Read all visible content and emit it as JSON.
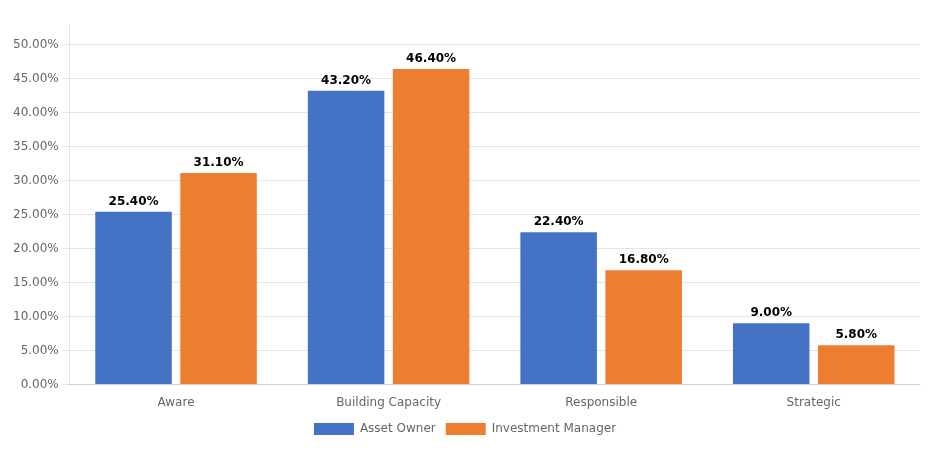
{
  "chart_data": {
    "type": "bar",
    "categories": [
      "Aware",
      "Building Capacity",
      "Responsible",
      "Strategic"
    ],
    "series": [
      {
        "name": "Asset Owner",
        "color": "#4472C4",
        "values": [
          0.254,
          0.432,
          0.224,
          0.09
        ],
        "value_labels": [
          "25.40%",
          "43.20%",
          "22.40%",
          "9.00%"
        ]
      },
      {
        "name": "Investment Manager",
        "color": "#ED7D31",
        "values": [
          0.311,
          0.464,
          0.168,
          0.058
        ],
        "value_labels": [
          "31.10%",
          "46.40%",
          "16.80%",
          "5.80%"
        ]
      }
    ],
    "ylim": [
      0,
      0.53
    ],
    "yticks": [
      {
        "value": 0.0,
        "label": "0.00%"
      },
      {
        "value": 0.05,
        "label": "5.00%"
      },
      {
        "value": 0.1,
        "label": "10.00%"
      },
      {
        "value": 0.15,
        "label": "15.00%"
      },
      {
        "value": 0.2,
        "label": "20.00%"
      },
      {
        "value": 0.25,
        "label": "25.00%"
      },
      {
        "value": 0.3,
        "label": "30.00%"
      },
      {
        "value": 0.35,
        "label": "35.00%"
      },
      {
        "value": 0.4,
        "label": "40.00%"
      },
      {
        "value": 0.45,
        "label": "45.00%"
      },
      {
        "value": 0.5,
        "label": "50.00%"
      }
    ],
    "grid": true,
    "legend": "bottom",
    "data_labels": true
  }
}
